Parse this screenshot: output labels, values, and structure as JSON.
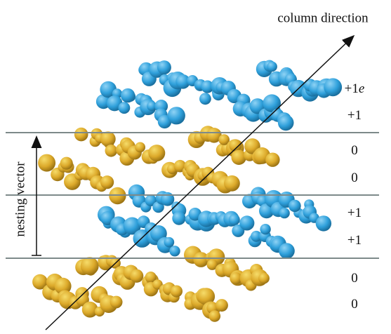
{
  "diagram": {
    "axis_label": "column direction",
    "side_label": "nesting vector",
    "charges": [
      {
        "number": "+1",
        "unit": "e"
      },
      {
        "number": "+1"
      },
      {
        "number": "0"
      },
      {
        "number": "0"
      },
      {
        "number": "+1"
      },
      {
        "number": "+1"
      },
      {
        "number": "0"
      },
      {
        "number": "0"
      }
    ]
  }
}
